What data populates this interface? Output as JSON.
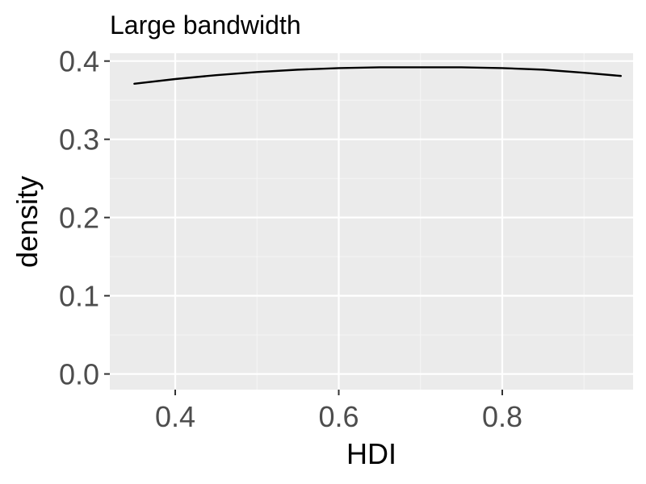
{
  "chart_data": {
    "type": "line",
    "title": "Large bandwidth",
    "xlabel": "HDI",
    "ylabel": "density",
    "xlim": [
      0.32,
      0.96
    ],
    "ylim": [
      -0.02,
      0.41
    ],
    "x_ticks": [
      0.4,
      0.6,
      0.8
    ],
    "x_tick_labels": [
      "0.4",
      "0.6",
      "0.8"
    ],
    "y_ticks": [
      0.0,
      0.1,
      0.2,
      0.3,
      0.4
    ],
    "y_tick_labels": [
      "0.0",
      "0.1",
      "0.2",
      "0.3",
      "0.4"
    ],
    "grid": true,
    "series": [
      {
        "color": "#000000",
        "x": [
          0.35,
          0.4,
          0.45,
          0.5,
          0.55,
          0.6,
          0.65,
          0.7,
          0.75,
          0.8,
          0.85,
          0.9,
          0.945
        ],
        "y": [
          0.371,
          0.377,
          0.382,
          0.386,
          0.389,
          0.391,
          0.392,
          0.392,
          0.392,
          0.391,
          0.389,
          0.385,
          0.381
        ]
      }
    ],
    "colors": {
      "panel_background": "#ebebeb",
      "grid_major": "#ffffff",
      "grid_minor": "#f5f5f5",
      "tick_label": "#4d4d4d",
      "tick_mark": "#333333"
    }
  }
}
